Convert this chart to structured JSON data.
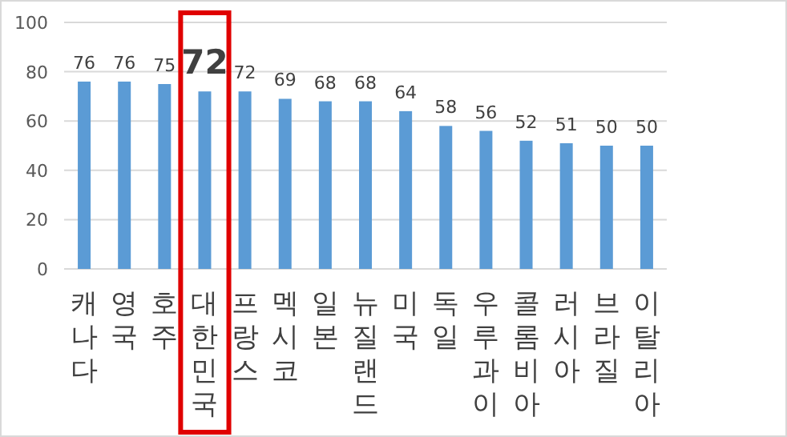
{
  "chart_data": {
    "type": "bar",
    "categories": [
      "캐나다",
      "영국",
      "호주",
      "대한민국",
      "프랑스",
      "멕시코",
      "일본",
      "뉴질랜드",
      "미국",
      "독일",
      "우루과이",
      "콜롬비아",
      "러시아",
      "브라질",
      "이탈리아"
    ],
    "values": [
      76,
      76,
      75,
      72,
      72,
      69,
      68,
      68,
      64,
      58,
      56,
      52,
      51,
      50,
      50
    ],
    "color": "#5b9bd5",
    "ylim": [
      0,
      100
    ],
    "yticks": [
      0,
      20,
      40,
      60,
      80,
      100
    ],
    "grid": "y",
    "data_labels": true
  }
}
